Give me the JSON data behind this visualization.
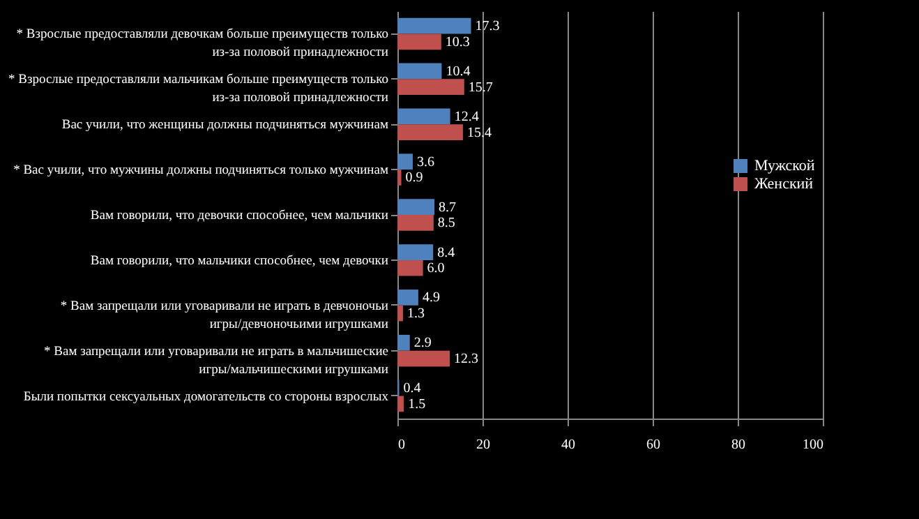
{
  "chart_data": {
    "type": "bar",
    "orientation": "horizontal",
    "categories": [
      "* Взрослые предоставляли девочкам больше преимуществ только из-за половой принадлежности",
      "* Взрослые предоставляли мальчикам больше преимуществ только из-за половой принадлежности",
      "Вас учили, что женщины должны подчиняться мужчинам",
      "* Вас учили, что мужчины должны подчиняться только мужчинам",
      "Вам говорили, что девочки способнее, чем мальчики",
      "Вам говорили, что мальчики способнее, чем девочки",
      "* Вам запрещали или уговаривали не играть в девчоночьи игры/девчоночьими игрушками",
      "* Вам запрещали или уговаривали не играть в мальчишеские игры/мальчишескими игрушками",
      "Были попытки сексуальных домогательств со стороны взрослых"
    ],
    "series": [
      {
        "name": "Мужской",
        "color": "#4f81bd",
        "values": [
          17.3,
          10.4,
          12.4,
          3.6,
          8.7,
          8.4,
          4.9,
          2.9,
          0.4
        ],
        "value_labels": [
          "17.3",
          "10.4",
          "12.4",
          "3.6",
          "8.7",
          "8.4",
          "4.9",
          "2.9",
          "0.4"
        ]
      },
      {
        "name": "Женский",
        "color": "#c0504d",
        "values": [
          10.3,
          15.7,
          15.4,
          0.9,
          8.5,
          6.0,
          1.3,
          12.3,
          1.5
        ],
        "value_labels": [
          "10.3",
          "15.7",
          "15.4",
          "0.9",
          "8.5",
          "6.0",
          "1.3",
          "12.3",
          "1.5"
        ]
      }
    ],
    "xlim": [
      0,
      100
    ],
    "xticks": [
      0,
      20,
      40,
      60,
      80,
      100
    ],
    "grid": "x",
    "legend": "right"
  }
}
